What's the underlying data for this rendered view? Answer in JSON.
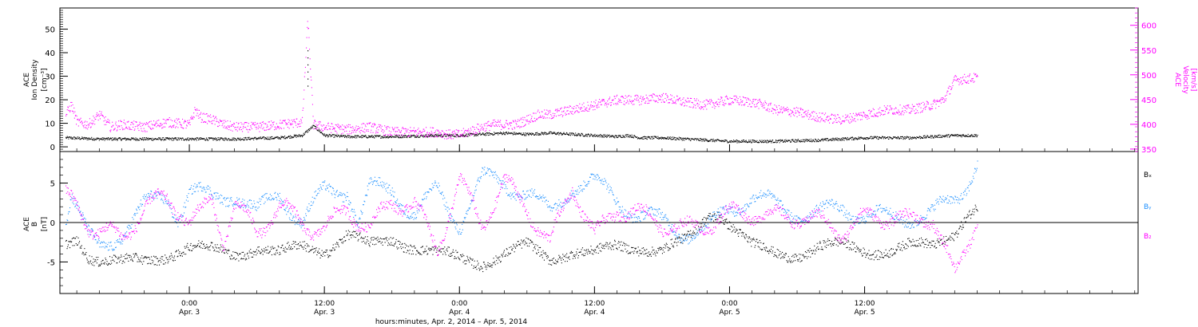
{
  "chart_data": [
    {
      "id": "density-velocity",
      "type": "scatter",
      "title": "",
      "ylabel_left_lines": [
        "ACE",
        "Ion Density",
        "[cm⁻³]"
      ],
      "ylabel_right_lines": [
        "ACE",
        "Velocity",
        "[km/s]"
      ],
      "ylim_left": [
        -2,
        59
      ],
      "yticks_left": [
        0,
        10,
        20,
        30,
        40,
        50
      ],
      "ylim_right": [
        345,
        635
      ],
      "yticks_right": [
        350,
        400,
        450,
        500,
        550,
        600
      ],
      "series": [
        {
          "name": "Ion Density",
          "axis": "left",
          "color": "#000000",
          "x": [
            -11,
            -8,
            -4,
            0,
            4,
            8,
            10,
            11,
            12,
            14,
            18,
            22,
            24,
            26,
            28,
            30,
            32,
            34,
            36,
            38,
            39,
            40,
            42,
            44,
            46,
            48,
            52,
            56,
            60,
            64,
            68,
            70
          ],
          "y": [
            4,
            3.5,
            3.5,
            3.5,
            3.5,
            4,
            5,
            9,
            5,
            4.5,
            4.5,
            5,
            5,
            5.5,
            6,
            5.5,
            6,
            5.5,
            5,
            4.5,
            5,
            4,
            4,
            3.5,
            3,
            2.5,
            2.5,
            3,
            4,
            4,
            5,
            5
          ],
          "spikes": [
            {
              "x": 10.5,
              "y": 41
            }
          ]
        },
        {
          "name": "Velocity",
          "axis": "right",
          "color": "#ff00ff",
          "x": [
            -11,
            -10.5,
            -10,
            -9,
            -8,
            -7,
            -6,
            -4,
            -2,
            0,
            0.5,
            1,
            2,
            3,
            4,
            6,
            8,
            10,
            10.5,
            11,
            12,
            14,
            16,
            18,
            20,
            22,
            23,
            24,
            26,
            27,
            28,
            29,
            30,
            31,
            32,
            33,
            34,
            35,
            36,
            38,
            40,
            42,
            44,
            46,
            48,
            50,
            51,
            52,
            54,
            56,
            58,
            60,
            62,
            64,
            66,
            67,
            68,
            70
          ],
          "y": [
            420,
            440,
            405,
            400,
            420,
            395,
            400,
            395,
            405,
            400,
            430,
            415,
            410,
            400,
            395,
            395,
            400,
            405,
            612,
            400,
            395,
            390,
            395,
            385,
            385,
            385,
            380,
            380,
            395,
            400,
            400,
            400,
            410,
            420,
            420,
            425,
            430,
            435,
            440,
            450,
            450,
            455,
            445,
            440,
            450,
            445,
            440,
            430,
            425,
            415,
            410,
            420,
            430,
            430,
            440,
            450,
            490,
            495
          ]
        }
      ]
    },
    {
      "id": "magnetic-field",
      "type": "scatter",
      "title": "",
      "ylabel_left_lines": [
        "ACE",
        "B",
        "[nT]"
      ],
      "ylim": [
        -9,
        9
      ],
      "yticks": [
        -5,
        0,
        5
      ],
      "zero_line": true,
      "legend": [
        "Bₓ",
        "Bᵧ",
        "B₂"
      ],
      "legend_placement": "right",
      "series": [
        {
          "name": "Bₓ",
          "color": "#000000",
          "x": [
            -11,
            -10,
            -9,
            -8,
            -6,
            -4,
            -2,
            0,
            2,
            4,
            6,
            8,
            10,
            12,
            14,
            16,
            18,
            20,
            22,
            24,
            26,
            28,
            30,
            32,
            34,
            36,
            38,
            40,
            42,
            44,
            45,
            46,
            47,
            48,
            50,
            52,
            54,
            56,
            58,
            60,
            62,
            64,
            66,
            68,
            69,
            70
          ],
          "y": [
            -3,
            -2,
            -4,
            -4.5,
            -5,
            -5,
            -4,
            -3,
            -3.5,
            -4,
            -3,
            -4,
            -3,
            -3.5,
            -1.5,
            -3,
            -2,
            -3,
            -4,
            -4.5,
            -5,
            -4,
            -3,
            -4.5,
            -3.5,
            -4,
            -3,
            -3,
            -3.5,
            -2.5,
            -1,
            1,
            1.5,
            0,
            -3,
            -4,
            -4,
            -3,
            -3,
            -3.5,
            -3.5,
            -3,
            -3,
            -1,
            1,
            2
          ]
        },
        {
          "name": "Bᵧ",
          "color": "#1e90ff",
          "x": [
            -11,
            -10.5,
            -10,
            -9,
            -8,
            -6,
            -4,
            -2,
            -1,
            0,
            2,
            4,
            6,
            8,
            10,
            12,
            14,
            15,
            16,
            18,
            20,
            22,
            24,
            26,
            28,
            30,
            32,
            34,
            36,
            38,
            40,
            42,
            44,
            46,
            48,
            50,
            52,
            54,
            56,
            58,
            60,
            62,
            64,
            66,
            68,
            69,
            70
          ],
          "y": [
            1,
            4,
            2,
            -2,
            -3.5,
            -1,
            2,
            3.5,
            1,
            4,
            3,
            4,
            1,
            4,
            0,
            4,
            4.5,
            0,
            4,
            4.5,
            1,
            4,
            0,
            5.5,
            5,
            4,
            1,
            5,
            5,
            3,
            1,
            0,
            -1,
            -1,
            2,
            3.5,
            2,
            1.5,
            1,
            2,
            1,
            0.5,
            1,
            1,
            3,
            5,
            8
          ]
        },
        {
          "name": "B₂",
          "color": "#ff00ff",
          "x": [
            -11,
            -10,
            -9,
            -8,
            -6,
            -4,
            -2,
            -1,
            0,
            1,
            2,
            3,
            4,
            6,
            8,
            10,
            12,
            14,
            16,
            18,
            20,
            22,
            24,
            26,
            28,
            30,
            32,
            34,
            36,
            38,
            40,
            42,
            44,
            46,
            48,
            50,
            52,
            54,
            56,
            58,
            60,
            62,
            64,
            66,
            67,
            68,
            69,
            70
          ],
          "y": [
            3,
            2,
            0,
            -1,
            -2,
            2,
            3,
            2,
            0,
            1,
            3,
            -2,
            2,
            -1,
            2,
            0,
            -1,
            2,
            -1,
            3,
            2,
            -3,
            5,
            0,
            5,
            2,
            -3,
            5,
            -2,
            2,
            1,
            0,
            -1,
            0,
            1,
            1.5,
            0.5,
            1,
            0,
            -1,
            0.5,
            1,
            0,
            1,
            -3,
            -7,
            -3,
            1
          ]
        }
      ]
    }
  ],
  "x_axis": {
    "tick_labels": [
      "0:00",
      "12:00",
      "0:00",
      "12:00",
      "0:00",
      "12:00"
    ],
    "tick_dates": [
      "Apr. 3",
      "Apr. 3",
      "Apr. 4",
      "Apr. 4",
      "Apr. 5",
      "Apr. 5"
    ],
    "tick_hours": [
      0,
      12,
      24,
      36,
      48,
      60
    ],
    "xlim_hours": [
      -11.5,
      84.3
    ],
    "data_end_hours": 70,
    "xlabel": "hours:minutes, Apr.  2, 2014 – Apr.  5, 2014"
  }
}
